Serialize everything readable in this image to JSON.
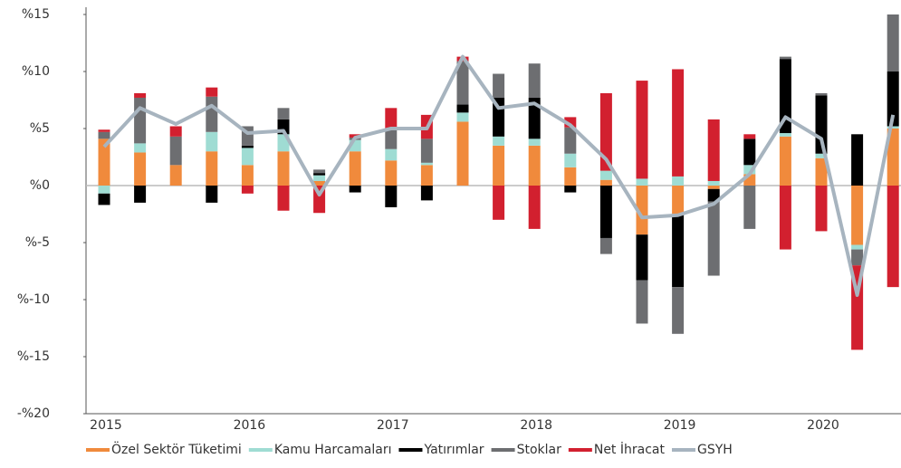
{
  "chart_data": {
    "type": "bar",
    "categories": [
      "2015",
      null,
      null,
      null,
      "2016",
      null,
      null,
      null,
      "2017",
      null,
      null,
      null,
      "2018",
      null,
      null,
      null,
      "2019",
      null,
      null,
      null,
      "2020",
      null,
      null
    ],
    "series": [
      {
        "name": "Özel Sektör Tüketimi",
        "color": "#f08a3c",
        "values": [
          4.1,
          2.9,
          1.8,
          3.0,
          1.8,
          3.0,
          0.4,
          3.0,
          2.2,
          1.8,
          5.6,
          3.5,
          3.5,
          1.6,
          0.5,
          -4.3,
          -2.5,
          -0.3,
          1.0,
          4.3,
          2.4,
          -5.2,
          5.0
        ]
      },
      {
        "name": "Kamu Harcamaları",
        "color": "#9fdcd3",
        "values": [
          -0.7,
          0.8,
          0,
          1.7,
          1.5,
          1.5,
          0.5,
          1.0,
          1.0,
          0.2,
          0.8,
          0.8,
          0.6,
          1.2,
          0.8,
          0.6,
          0.8,
          0.4,
          0.8,
          0.3,
          0.4,
          -0.4,
          0.2
        ]
      },
      {
        "name": "Yatırımlar",
        "color": "#000000",
        "values": [
          -1.0,
          -1.5,
          0,
          -1.5,
          0.2,
          1.3,
          0.2,
          -0.6,
          -1.9,
          -1.3,
          0.7,
          3.4,
          3.6,
          -0.6,
          -4.6,
          -4.0,
          -6.4,
          -1.1,
          2.3,
          6.5,
          5.1,
          4.5,
          4.8
        ]
      },
      {
        "name": "Stoklar",
        "color": "#6d6e71",
        "values": [
          0.6,
          4.0,
          2.5,
          3.1,
          1.7,
          1.0,
          0.3,
          0.2,
          1.7,
          2.1,
          3.8,
          2.1,
          3.0,
          2.3,
          -1.4,
          -3.8,
          -4.1,
          -6.5,
          -3.8,
          0.2,
          0.2,
          -1.4,
          5.0
        ]
      },
      {
        "name": "Net İhracat",
        "color": "#d2202f",
        "values": [
          0.2,
          0.4,
          0.9,
          0.8,
          -0.7,
          -2.2,
          -2.4,
          0.3,
          1.9,
          2.1,
          0.4,
          -3.0,
          -3.8,
          0.9,
          6.8,
          8.6,
          9.4,
          5.4,
          0.4,
          -5.6,
          -4.0,
          -7.4,
          -8.9
        ]
      },
      {
        "name": "GSYH",
        "color": "#a7b4bf",
        "type": "line",
        "values": [
          3.4,
          6.8,
          5.4,
          7.0,
          4.6,
          4.8,
          -0.8,
          4.2,
          5.0,
          5.0,
          11.3,
          6.8,
          7.2,
          5.3,
          2.3,
          -2.8,
          -2.6,
          -1.6,
          1.0,
          6.0,
          4.1,
          -9.6,
          6.2
        ]
      }
    ],
    "ylim": [
      -20,
      15
    ],
    "yticks": [
      {
        "value": -20,
        "label": "-%20"
      },
      {
        "value": -15,
        "label": "%-15"
      },
      {
        "value": -10,
        "label": "%-10"
      },
      {
        "value": -5,
        "label": "%-5"
      },
      {
        "value": 0,
        "label": "%0"
      },
      {
        "value": 5,
        "label": "%5"
      },
      {
        "value": 10,
        "label": "%10"
      },
      {
        "value": 15,
        "label": "%15"
      }
    ],
    "legend": "bottom"
  }
}
